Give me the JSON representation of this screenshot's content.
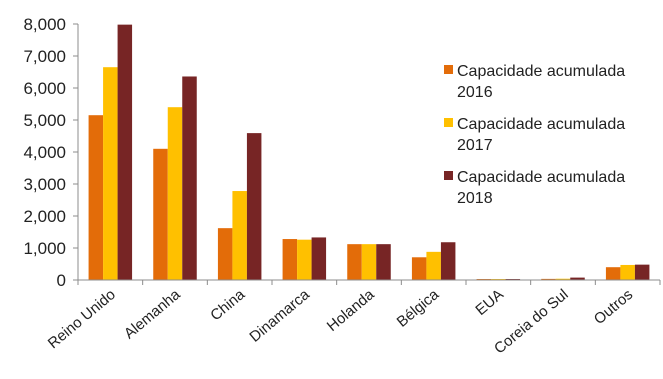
{
  "chart_data": {
    "type": "bar",
    "title": "",
    "xlabel": "",
    "ylabel": "",
    "ylim": [
      0,
      8000
    ],
    "yticks": [
      "0",
      "1,000",
      "2,000",
      "3,000",
      "4,000",
      "5,000",
      "6,000",
      "7,000",
      "8,000"
    ],
    "ytick_values": [
      0,
      1000,
      2000,
      3000,
      4000,
      5000,
      6000,
      7000,
      8000
    ],
    "grid": false,
    "legend_position": "right",
    "categories": [
      "Reino Unido",
      "Alemanha",
      "China",
      "Dinamarca",
      "Holanda",
      "Bélgica",
      "EUA",
      "Coreia do Sul",
      "Outros"
    ],
    "series": [
      {
        "name": "Capacidade acumulada 2016",
        "legend_lines": [
          "Capacidade acumulada",
          "2016"
        ],
        "color": "#e36c09",
        "values": [
          5150,
          4100,
          1620,
          1280,
          1120,
          710,
          30,
          35,
          400
        ]
      },
      {
        "name": "Capacidade acumulada 2017",
        "legend_lines": [
          "Capacidade acumulada",
          "2017"
        ],
        "color": "#ffc000",
        "values": [
          6650,
          5400,
          2780,
          1260,
          1120,
          880,
          30,
          40,
          470
        ]
      },
      {
        "name": "Capacidade acumulada 2018",
        "legend_lines": [
          "Capacidade acumulada",
          "2018"
        ],
        "color": "#772525",
        "values": [
          7980,
          6360,
          4590,
          1330,
          1120,
          1180,
          30,
          75,
          480
        ]
      }
    ],
    "axis_color": "#8c8c8c"
  }
}
